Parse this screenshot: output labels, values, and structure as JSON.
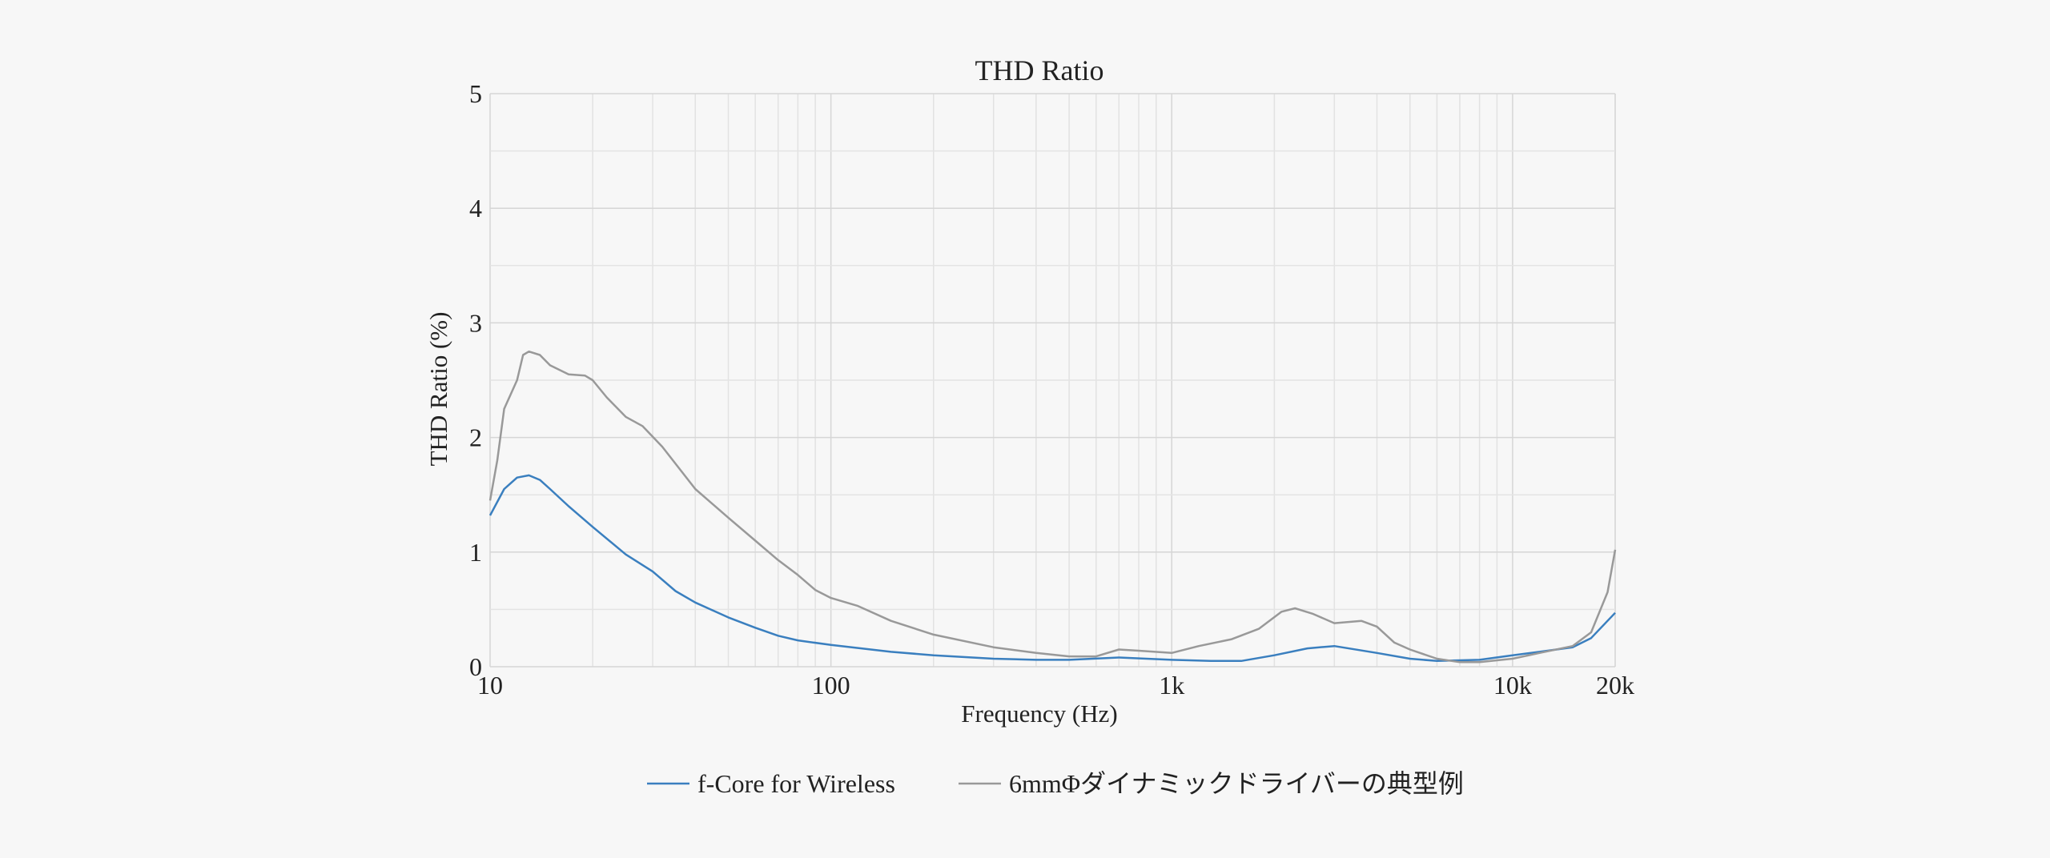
{
  "chart_data": {
    "type": "line",
    "title": "THD Ratio",
    "xlabel": "Frequency (Hz)",
    "ylabel": "THD Ratio (%)",
    "x_scale": "log",
    "xlim": [
      10,
      20000
    ],
    "ylim": [
      0,
      5
    ],
    "grid": true,
    "legend_position": "bottom",
    "x_ticks": [
      10,
      100,
      1000,
      10000,
      20000
    ],
    "x_tick_labels": [
      "10",
      "100",
      "1k",
      "10k",
      "20k"
    ],
    "y_ticks": [
      0,
      1,
      2,
      3,
      4,
      5
    ],
    "y_tick_labels": [
      "0",
      "1",
      "2",
      "3",
      "4",
      "5"
    ],
    "series": [
      {
        "name": "f-Core for Wireless",
        "color": "#3a7fbf",
        "points": [
          [
            10,
            1.32
          ],
          [
            11,
            1.55
          ],
          [
            12,
            1.65
          ],
          [
            13,
            1.67
          ],
          [
            14,
            1.63
          ],
          [
            15,
            1.55
          ],
          [
            17,
            1.4
          ],
          [
            20,
            1.22
          ],
          [
            25,
            0.98
          ],
          [
            30,
            0.83
          ],
          [
            35,
            0.66
          ],
          [
            40,
            0.56
          ],
          [
            50,
            0.43
          ],
          [
            60,
            0.34
          ],
          [
            70,
            0.27
          ],
          [
            80,
            0.23
          ],
          [
            100,
            0.19
          ],
          [
            150,
            0.13
          ],
          [
            200,
            0.1
          ],
          [
            300,
            0.07
          ],
          [
            400,
            0.06
          ],
          [
            500,
            0.06
          ],
          [
            700,
            0.08
          ],
          [
            1000,
            0.06
          ],
          [
            1300,
            0.05
          ],
          [
            1600,
            0.05
          ],
          [
            2000,
            0.1
          ],
          [
            2500,
            0.16
          ],
          [
            3000,
            0.18
          ],
          [
            4000,
            0.12
          ],
          [
            5000,
            0.07
          ],
          [
            6000,
            0.05
          ],
          [
            8000,
            0.06
          ],
          [
            10000,
            0.1
          ],
          [
            12000,
            0.13
          ],
          [
            15000,
            0.17
          ],
          [
            17000,
            0.25
          ],
          [
            20000,
            0.47
          ]
        ]
      },
      {
        "name": "6mmΦダイナミックドライバーの典型例",
        "color": "#999999",
        "points": [
          [
            10,
            1.45
          ],
          [
            10.5,
            1.8
          ],
          [
            11,
            2.25
          ],
          [
            12,
            2.5
          ],
          [
            12.5,
            2.72
          ],
          [
            13,
            2.75
          ],
          [
            14,
            2.72
          ],
          [
            15,
            2.63
          ],
          [
            17,
            2.55
          ],
          [
            19,
            2.54
          ],
          [
            20,
            2.5
          ],
          [
            22,
            2.35
          ],
          [
            25,
            2.18
          ],
          [
            28,
            2.1
          ],
          [
            32,
            1.92
          ],
          [
            40,
            1.55
          ],
          [
            50,
            1.3
          ],
          [
            60,
            1.1
          ],
          [
            70,
            0.93
          ],
          [
            80,
            0.8
          ],
          [
            90,
            0.67
          ],
          [
            100,
            0.6
          ],
          [
            120,
            0.53
          ],
          [
            150,
            0.4
          ],
          [
            200,
            0.28
          ],
          [
            300,
            0.17
          ],
          [
            400,
            0.12
          ],
          [
            500,
            0.09
          ],
          [
            600,
            0.09
          ],
          [
            700,
            0.15
          ],
          [
            800,
            0.14
          ],
          [
            1000,
            0.12
          ],
          [
            1200,
            0.18
          ],
          [
            1500,
            0.24
          ],
          [
            1800,
            0.33
          ],
          [
            2100,
            0.48
          ],
          [
            2300,
            0.51
          ],
          [
            2600,
            0.46
          ],
          [
            3000,
            0.38
          ],
          [
            3600,
            0.4
          ],
          [
            4000,
            0.35
          ],
          [
            4500,
            0.21
          ],
          [
            5000,
            0.15
          ],
          [
            6000,
            0.07
          ],
          [
            7000,
            0.04
          ],
          [
            8000,
            0.04
          ],
          [
            10000,
            0.07
          ],
          [
            12000,
            0.12
          ],
          [
            15000,
            0.18
          ],
          [
            17000,
            0.3
          ],
          [
            19000,
            0.65
          ],
          [
            20000,
            1.02
          ]
        ]
      }
    ]
  }
}
